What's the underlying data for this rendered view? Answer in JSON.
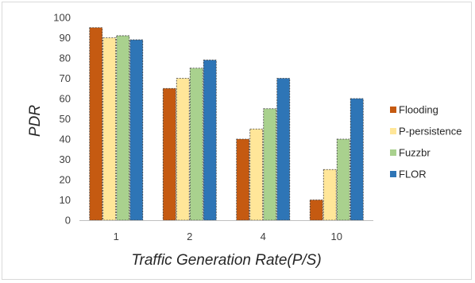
{
  "chart_data": {
    "type": "bar",
    "title": "",
    "xlabel": "Traffic Generation Rate(P/S)",
    "ylabel": "PDR",
    "categories": [
      "1",
      "2",
      "4",
      "10"
    ],
    "ylim": [
      0,
      100
    ],
    "yticks": [
      0,
      10,
      20,
      30,
      40,
      50,
      60,
      70,
      80,
      90,
      100
    ],
    "grid": false,
    "legend_position": "right",
    "series": [
      {
        "name": "Flooding",
        "color": "#c55a11",
        "values": [
          95,
          65,
          40,
          10
        ]
      },
      {
        "name": "P-persistence",
        "color": "#ffe699",
        "values": [
          90,
          70,
          45,
          25
        ]
      },
      {
        "name": "Fuzzbr",
        "color": "#a9d18e",
        "values": [
          91,
          75,
          55,
          40
        ]
      },
      {
        "name": "FLOR",
        "color": "#2e75b6",
        "values": [
          89,
          79,
          70,
          60
        ]
      }
    ]
  }
}
